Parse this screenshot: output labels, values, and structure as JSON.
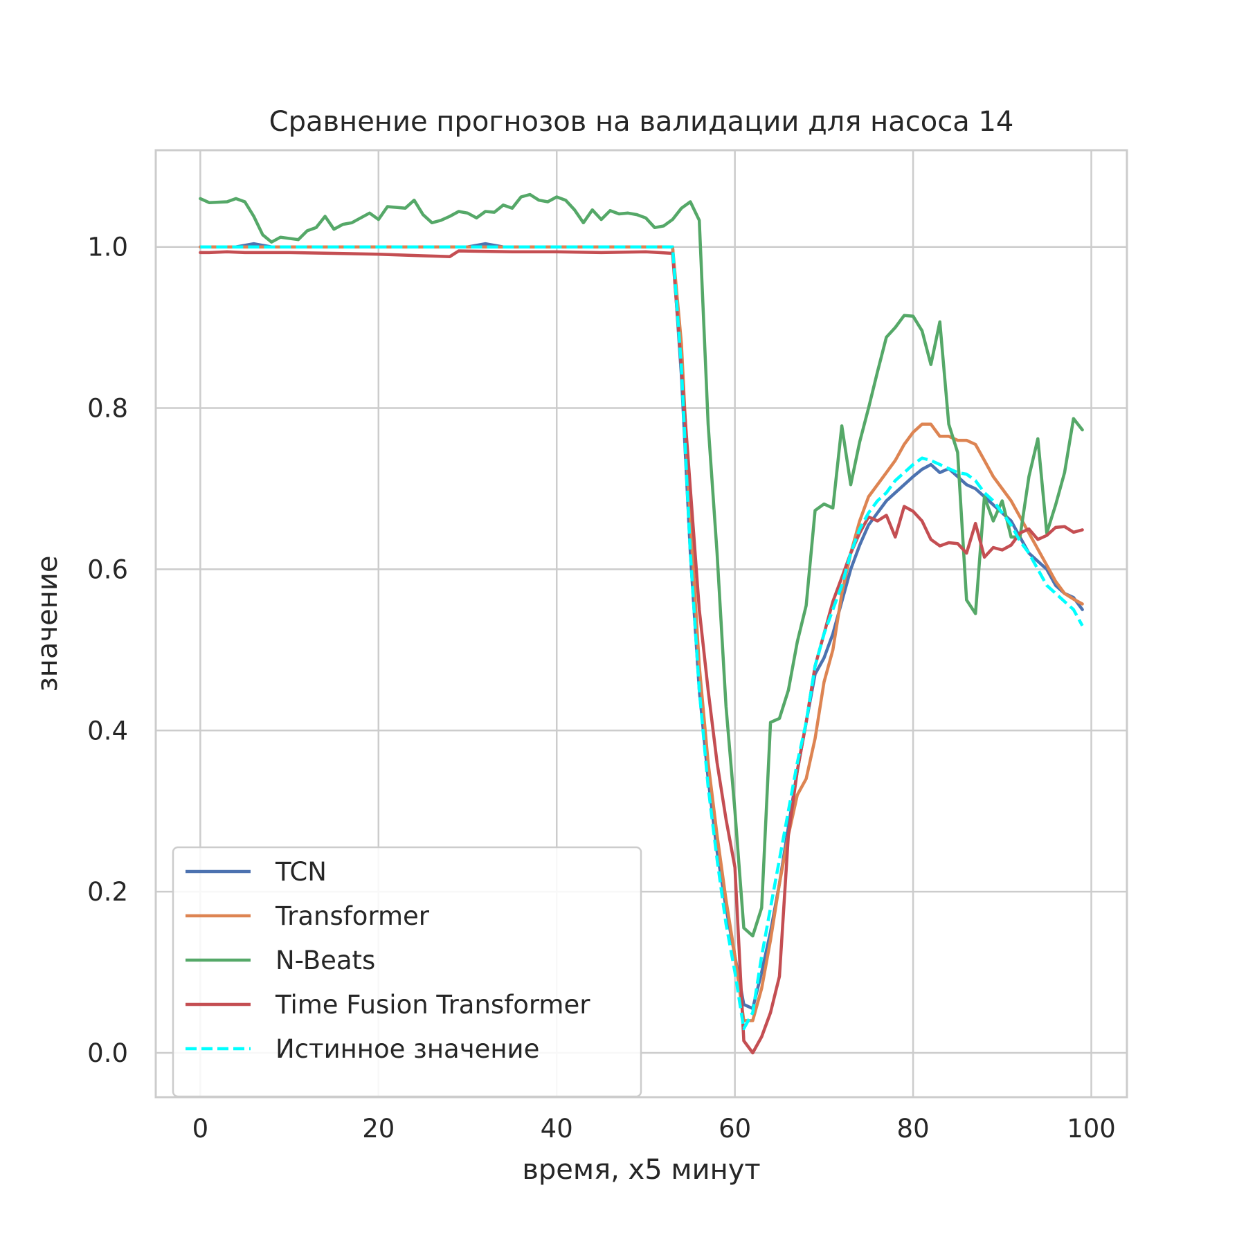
{
  "chart_data": {
    "type": "line",
    "title": "Сравнение прогнозов на валидации для насоса 14",
    "xlabel": "время, x5 минут",
    "ylabel": "значение",
    "xlim": [
      -5,
      104
    ],
    "ylim": [
      -0.055,
      1.12
    ],
    "xticks": [
      0,
      20,
      40,
      60,
      80,
      100
    ],
    "yticks": [
      0.0,
      0.2,
      0.4,
      0.6,
      0.8,
      1.0
    ],
    "xtick_labels": [
      "0",
      "20",
      "40",
      "60",
      "80",
      "100"
    ],
    "ytick_labels": [
      "0.0",
      "0.2",
      "0.4",
      "0.6",
      "0.8",
      "1.0"
    ],
    "grid": true,
    "legend_position": "lower-left",
    "series": [
      {
        "name": "TCN",
        "color": "#4c72b0",
        "dashed": false,
        "points": [
          [
            0,
            1.0
          ],
          [
            4,
            1.0
          ],
          [
            6,
            1.004
          ],
          [
            8,
            1.0
          ],
          [
            30,
            1.0
          ],
          [
            32,
            1.004
          ],
          [
            34,
            1.0
          ],
          [
            53,
            1.0
          ],
          [
            54,
            0.84
          ],
          [
            55,
            0.62
          ],
          [
            56,
            0.45
          ],
          [
            57,
            0.34
          ],
          [
            58,
            0.25
          ],
          [
            59,
            0.18
          ],
          [
            60,
            0.12
          ],
          [
            61,
            0.06
          ],
          [
            62,
            0.055
          ],
          [
            63,
            0.1
          ],
          [
            64,
            0.15
          ],
          [
            65,
            0.21
          ],
          [
            66,
            0.28
          ],
          [
            67,
            0.35
          ],
          [
            68,
            0.41
          ],
          [
            69,
            0.47
          ],
          [
            70,
            0.49
          ],
          [
            71,
            0.52
          ],
          [
            72,
            0.56
          ],
          [
            73,
            0.6
          ],
          [
            74,
            0.63
          ],
          [
            75,
            0.655
          ],
          [
            76,
            0.67
          ],
          [
            77,
            0.685
          ],
          [
            78,
            0.695
          ],
          [
            79,
            0.705
          ],
          [
            80,
            0.715
          ],
          [
            81,
            0.724
          ],
          [
            82,
            0.73
          ],
          [
            83,
            0.72
          ],
          [
            84,
            0.725
          ],
          [
            85,
            0.715
          ],
          [
            86,
            0.705
          ],
          [
            87,
            0.7
          ],
          [
            88,
            0.69
          ],
          [
            89,
            0.68
          ],
          [
            90,
            0.67
          ],
          [
            91,
            0.66
          ],
          [
            92,
            0.64
          ],
          [
            93,
            0.62
          ],
          [
            94,
            0.61
          ],
          [
            95,
            0.6
          ],
          [
            96,
            0.58
          ],
          [
            97,
            0.57
          ],
          [
            98,
            0.565
          ],
          [
            99,
            0.55
          ]
        ]
      },
      {
        "name": "Transformer",
        "color": "#dd8452",
        "dashed": false,
        "points": [
          [
            0,
            1.0
          ],
          [
            53,
            1.0
          ],
          [
            54,
            0.88
          ],
          [
            55,
            0.66
          ],
          [
            56,
            0.48
          ],
          [
            57,
            0.36
          ],
          [
            58,
            0.27
          ],
          [
            59,
            0.19
          ],
          [
            60,
            0.12
          ],
          [
            61,
            0.04
          ],
          [
            62,
            0.04
          ],
          [
            63,
            0.08
          ],
          [
            64,
            0.14
          ],
          [
            65,
            0.21
          ],
          [
            66,
            0.27
          ],
          [
            67,
            0.32
          ],
          [
            68,
            0.34
          ],
          [
            69,
            0.39
          ],
          [
            70,
            0.46
          ],
          [
            71,
            0.5
          ],
          [
            72,
            0.57
          ],
          [
            73,
            0.62
          ],
          [
            74,
            0.66
          ],
          [
            75,
            0.69
          ],
          [
            76,
            0.705
          ],
          [
            77,
            0.72
          ],
          [
            78,
            0.735
          ],
          [
            79,
            0.755
          ],
          [
            80,
            0.77
          ],
          [
            81,
            0.78
          ],
          [
            82,
            0.78
          ],
          [
            83,
            0.765
          ],
          [
            84,
            0.765
          ],
          [
            85,
            0.76
          ],
          [
            86,
            0.76
          ],
          [
            87,
            0.755
          ],
          [
            88,
            0.735
          ],
          [
            89,
            0.715
          ],
          [
            90,
            0.7
          ],
          [
            91,
            0.685
          ],
          [
            92,
            0.665
          ],
          [
            93,
            0.645
          ],
          [
            94,
            0.625
          ],
          [
            95,
            0.605
          ],
          [
            96,
            0.585
          ],
          [
            97,
            0.57
          ],
          [
            98,
            0.563
          ],
          [
            99,
            0.557
          ]
        ]
      },
      {
        "name": "N-Beats",
        "color": "#55a868",
        "dashed": false,
        "points": [
          [
            0,
            1.06
          ],
          [
            1,
            1.055
          ],
          [
            3,
            1.056
          ],
          [
            4,
            1.06
          ],
          [
            5,
            1.056
          ],
          [
            6,
            1.038
          ],
          [
            7,
            1.015
          ],
          [
            8,
            1.006
          ],
          [
            9,
            1.012
          ],
          [
            11,
            1.009
          ],
          [
            12,
            1.02
          ],
          [
            13,
            1.024
          ],
          [
            14,
            1.038
          ],
          [
            15,
            1.022
          ],
          [
            16,
            1.028
          ],
          [
            17,
            1.03
          ],
          [
            18,
            1.036
          ],
          [
            19,
            1.042
          ],
          [
            20,
            1.034
          ],
          [
            21,
            1.05
          ],
          [
            23,
            1.048
          ],
          [
            24,
            1.058
          ],
          [
            25,
            1.04
          ],
          [
            26,
            1.03
          ],
          [
            27,
            1.033
          ],
          [
            28,
            1.038
          ],
          [
            29,
            1.044
          ],
          [
            30,
            1.042
          ],
          [
            31,
            1.036
          ],
          [
            32,
            1.044
          ],
          [
            33,
            1.043
          ],
          [
            34,
            1.052
          ],
          [
            35,
            1.048
          ],
          [
            36,
            1.062
          ],
          [
            37,
            1.065
          ],
          [
            38,
            1.058
          ],
          [
            39,
            1.056
          ],
          [
            40,
            1.062
          ],
          [
            41,
            1.058
          ],
          [
            42,
            1.046
          ],
          [
            43,
            1.03
          ],
          [
            44,
            1.046
          ],
          [
            45,
            1.034
          ],
          [
            46,
            1.045
          ],
          [
            47,
            1.041
          ],
          [
            48,
            1.042
          ],
          [
            49,
            1.04
          ],
          [
            50,
            1.036
          ],
          [
            51,
            1.024
          ],
          [
            52,
            1.026
          ],
          [
            53,
            1.034
          ],
          [
            54,
            1.048
          ],
          [
            55,
            1.056
          ],
          [
            56,
            1.033
          ],
          [
            57,
            0.78
          ],
          [
            58,
            0.62
          ],
          [
            59,
            0.43
          ],
          [
            60,
            0.3
          ],
          [
            61,
            0.155
          ],
          [
            62,
            0.145
          ],
          [
            63,
            0.18
          ],
          [
            64,
            0.41
          ],
          [
            65,
            0.415
          ],
          [
            66,
            0.45
          ],
          [
            67,
            0.51
          ],
          [
            68,
            0.555
          ],
          [
            69,
            0.673
          ],
          [
            70,
            0.681
          ],
          [
            71,
            0.676
          ],
          [
            72,
            0.778
          ],
          [
            73,
            0.705
          ],
          [
            74,
            0.758
          ],
          [
            75,
            0.8
          ],
          [
            76,
            0.845
          ],
          [
            77,
            0.888
          ],
          [
            78,
            0.9
          ],
          [
            79,
            0.915
          ],
          [
            80,
            0.914
          ],
          [
            81,
            0.896
          ],
          [
            82,
            0.854
          ],
          [
            83,
            0.907
          ],
          [
            84,
            0.78
          ],
          [
            85,
            0.745
          ],
          [
            86,
            0.562
          ],
          [
            87,
            0.545
          ],
          [
            88,
            0.69
          ],
          [
            89,
            0.66
          ],
          [
            90,
            0.685
          ],
          [
            91,
            0.64
          ],
          [
            92,
            0.64
          ],
          [
            93,
            0.715
          ],
          [
            94,
            0.762
          ],
          [
            95,
            0.645
          ],
          [
            96,
            0.68
          ],
          [
            97,
            0.72
          ],
          [
            98,
            0.787
          ],
          [
            99,
            0.773
          ]
        ]
      },
      {
        "name": "Time Fusion Transformer",
        "color": "#c44e52",
        "dashed": false,
        "points": [
          [
            0,
            0.993
          ],
          [
            1,
            0.993
          ],
          [
            3,
            0.994
          ],
          [
            5,
            0.993
          ],
          [
            10,
            0.993
          ],
          [
            15,
            0.992
          ],
          [
            20,
            0.991
          ],
          [
            25,
            0.989
          ],
          [
            28,
            0.988
          ],
          [
            29,
            0.995
          ],
          [
            35,
            0.994
          ],
          [
            40,
            0.994
          ],
          [
            45,
            0.993
          ],
          [
            50,
            0.994
          ],
          [
            53,
            0.992
          ],
          [
            54,
            0.85
          ],
          [
            55,
            0.7
          ],
          [
            56,
            0.55
          ],
          [
            57,
            0.45
          ],
          [
            58,
            0.36
          ],
          [
            59,
            0.29
          ],
          [
            60,
            0.23
          ],
          [
            61,
            0.015
          ],
          [
            62,
            0.0
          ],
          [
            63,
            0.02
          ],
          [
            64,
            0.05
          ],
          [
            65,
            0.095
          ],
          [
            66,
            0.27
          ],
          [
            67,
            0.35
          ],
          [
            68,
            0.41
          ],
          [
            69,
            0.48
          ],
          [
            70,
            0.52
          ],
          [
            71,
            0.56
          ],
          [
            72,
            0.59
          ],
          [
            73,
            0.62
          ],
          [
            74,
            0.645
          ],
          [
            75,
            0.665
          ],
          [
            76,
            0.66
          ],
          [
            77,
            0.667
          ],
          [
            78,
            0.64
          ],
          [
            79,
            0.678
          ],
          [
            80,
            0.672
          ],
          [
            81,
            0.66
          ],
          [
            82,
            0.637
          ],
          [
            83,
            0.629
          ],
          [
            84,
            0.633
          ],
          [
            85,
            0.632
          ],
          [
            86,
            0.62
          ],
          [
            87,
            0.657
          ],
          [
            88,
            0.615
          ],
          [
            89,
            0.627
          ],
          [
            90,
            0.624
          ],
          [
            91,
            0.63
          ],
          [
            92,
            0.645
          ],
          [
            93,
            0.65
          ],
          [
            94,
            0.637
          ],
          [
            95,
            0.642
          ],
          [
            96,
            0.652
          ],
          [
            97,
            0.653
          ],
          [
            98,
            0.646
          ],
          [
            99,
            0.649
          ]
        ]
      },
      {
        "name": "Истинное значение",
        "color": "#00ffff",
        "dashed": true,
        "points": [
          [
            0,
            1.0
          ],
          [
            53,
            1.0
          ],
          [
            54,
            0.85
          ],
          [
            55,
            0.62
          ],
          [
            56,
            0.45
          ],
          [
            57,
            0.33
          ],
          [
            58,
            0.24
          ],
          [
            59,
            0.16
          ],
          [
            60,
            0.1
          ],
          [
            61,
            0.03
          ],
          [
            62,
            0.05
          ],
          [
            63,
            0.12
          ],
          [
            64,
            0.18
          ],
          [
            65,
            0.24
          ],
          [
            66,
            0.3
          ],
          [
            67,
            0.36
          ],
          [
            68,
            0.41
          ],
          [
            69,
            0.48
          ],
          [
            70,
            0.52
          ],
          [
            71,
            0.55
          ],
          [
            72,
            0.58
          ],
          [
            73,
            0.62
          ],
          [
            74,
            0.65
          ],
          [
            75,
            0.67
          ],
          [
            76,
            0.685
          ],
          [
            77,
            0.695
          ],
          [
            78,
            0.71
          ],
          [
            79,
            0.72
          ],
          [
            80,
            0.73
          ],
          [
            81,
            0.738
          ],
          [
            82,
            0.735
          ],
          [
            83,
            0.73
          ],
          [
            84,
            0.725
          ],
          [
            85,
            0.72
          ],
          [
            86,
            0.718
          ],
          [
            87,
            0.71
          ],
          [
            88,
            0.695
          ],
          [
            89,
            0.685
          ],
          [
            90,
            0.67
          ],
          [
            91,
            0.655
          ],
          [
            92,
            0.635
          ],
          [
            93,
            0.62
          ],
          [
            94,
            0.6
          ],
          [
            95,
            0.58
          ],
          [
            96,
            0.57
          ],
          [
            97,
            0.56
          ],
          [
            98,
            0.55
          ],
          [
            99,
            0.53
          ]
        ]
      }
    ]
  }
}
